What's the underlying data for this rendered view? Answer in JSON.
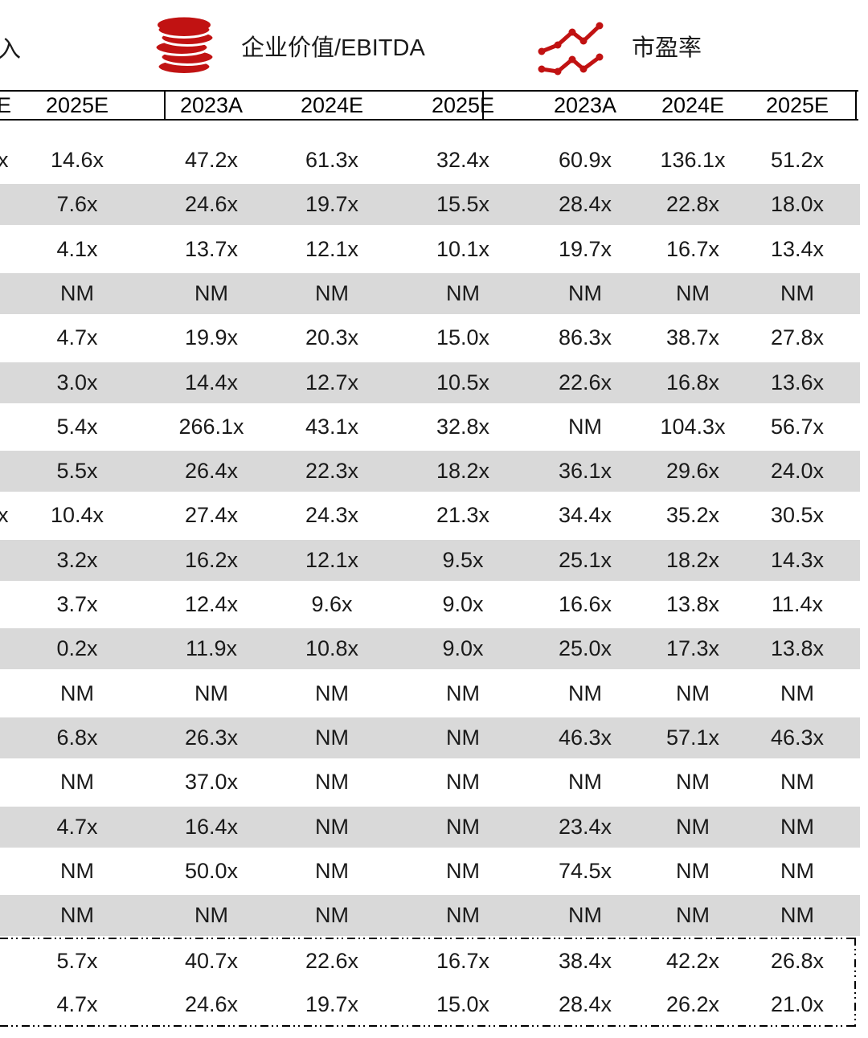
{
  "legend": {
    "clipped_metric_label": "入",
    "items": [
      {
        "icon": "coins-icon",
        "label": "企业价值/EBITDA"
      },
      {
        "icon": "line-chart-icon",
        "label": "市盈率"
      }
    ]
  },
  "table": {
    "header_cells": [
      "E",
      "2025E",
      "2023A",
      "2024E",
      "2025E",
      "2023A",
      "2024E",
      "2025E"
    ],
    "body_rows": [
      [
        "x",
        "14.6x",
        "47.2x",
        "61.3x",
        "32.4x",
        "60.9x",
        "136.1x",
        "51.2x"
      ],
      [
        "",
        "7.6x",
        "24.6x",
        "19.7x",
        "15.5x",
        "28.4x",
        "22.8x",
        "18.0x"
      ],
      [
        "",
        "4.1x",
        "13.7x",
        "12.1x",
        "10.1x",
        "19.7x",
        "16.7x",
        "13.4x"
      ],
      [
        "",
        "NM",
        "NM",
        "NM",
        "NM",
        "NM",
        "NM",
        "NM"
      ],
      [
        "",
        "4.7x",
        "19.9x",
        "20.3x",
        "15.0x",
        "86.3x",
        "38.7x",
        "27.8x"
      ],
      [
        "",
        "3.0x",
        "14.4x",
        "12.7x",
        "10.5x",
        "22.6x",
        "16.8x",
        "13.6x"
      ],
      [
        "",
        "5.4x",
        "266.1x",
        "43.1x",
        "32.8x",
        "NM",
        "104.3x",
        "56.7x"
      ],
      [
        "",
        "5.5x",
        "26.4x",
        "22.3x",
        "18.2x",
        "36.1x",
        "29.6x",
        "24.0x"
      ],
      [
        "x",
        "10.4x",
        "27.4x",
        "24.3x",
        "21.3x",
        "34.4x",
        "35.2x",
        "30.5x"
      ],
      [
        "",
        "3.2x",
        "16.2x",
        "12.1x",
        "9.5x",
        "25.1x",
        "18.2x",
        "14.3x"
      ],
      [
        "",
        "3.7x",
        "12.4x",
        "9.6x",
        "9.0x",
        "16.6x",
        "13.8x",
        "11.4x"
      ],
      [
        "",
        "0.2x",
        "11.9x",
        "10.8x",
        "9.0x",
        "25.0x",
        "17.3x",
        "13.8x"
      ],
      [
        "",
        "NM",
        "NM",
        "NM",
        "NM",
        "NM",
        "NM",
        "NM"
      ],
      [
        "",
        "6.8x",
        "26.3x",
        "NM",
        "NM",
        "46.3x",
        "57.1x",
        "46.3x"
      ],
      [
        "",
        "NM",
        "37.0x",
        "NM",
        "NM",
        "NM",
        "NM",
        "NM"
      ],
      [
        "",
        "4.7x",
        "16.4x",
        "NM",
        "NM",
        "23.4x",
        "NM",
        "NM"
      ],
      [
        "",
        "NM",
        "50.0x",
        "NM",
        "NM",
        "74.5x",
        "NM",
        "NM"
      ],
      [
        "",
        "NM",
        "NM",
        "NM",
        "NM",
        "NM",
        "NM",
        "NM"
      ]
    ],
    "summary_rows": [
      [
        "",
        "5.7x",
        "40.7x",
        "22.6x",
        "16.7x",
        "38.4x",
        "42.2x",
        "26.8x"
      ],
      [
        "",
        "4.7x",
        "24.6x",
        "19.7x",
        "15.0x",
        "28.4x",
        "26.2x",
        "21.0x"
      ]
    ]
  },
  "colors": {
    "accent_red": "#c11212",
    "stripe_gray": "#d9d9d9",
    "border_black": "#000000",
    "text": "#1a1a1a"
  }
}
